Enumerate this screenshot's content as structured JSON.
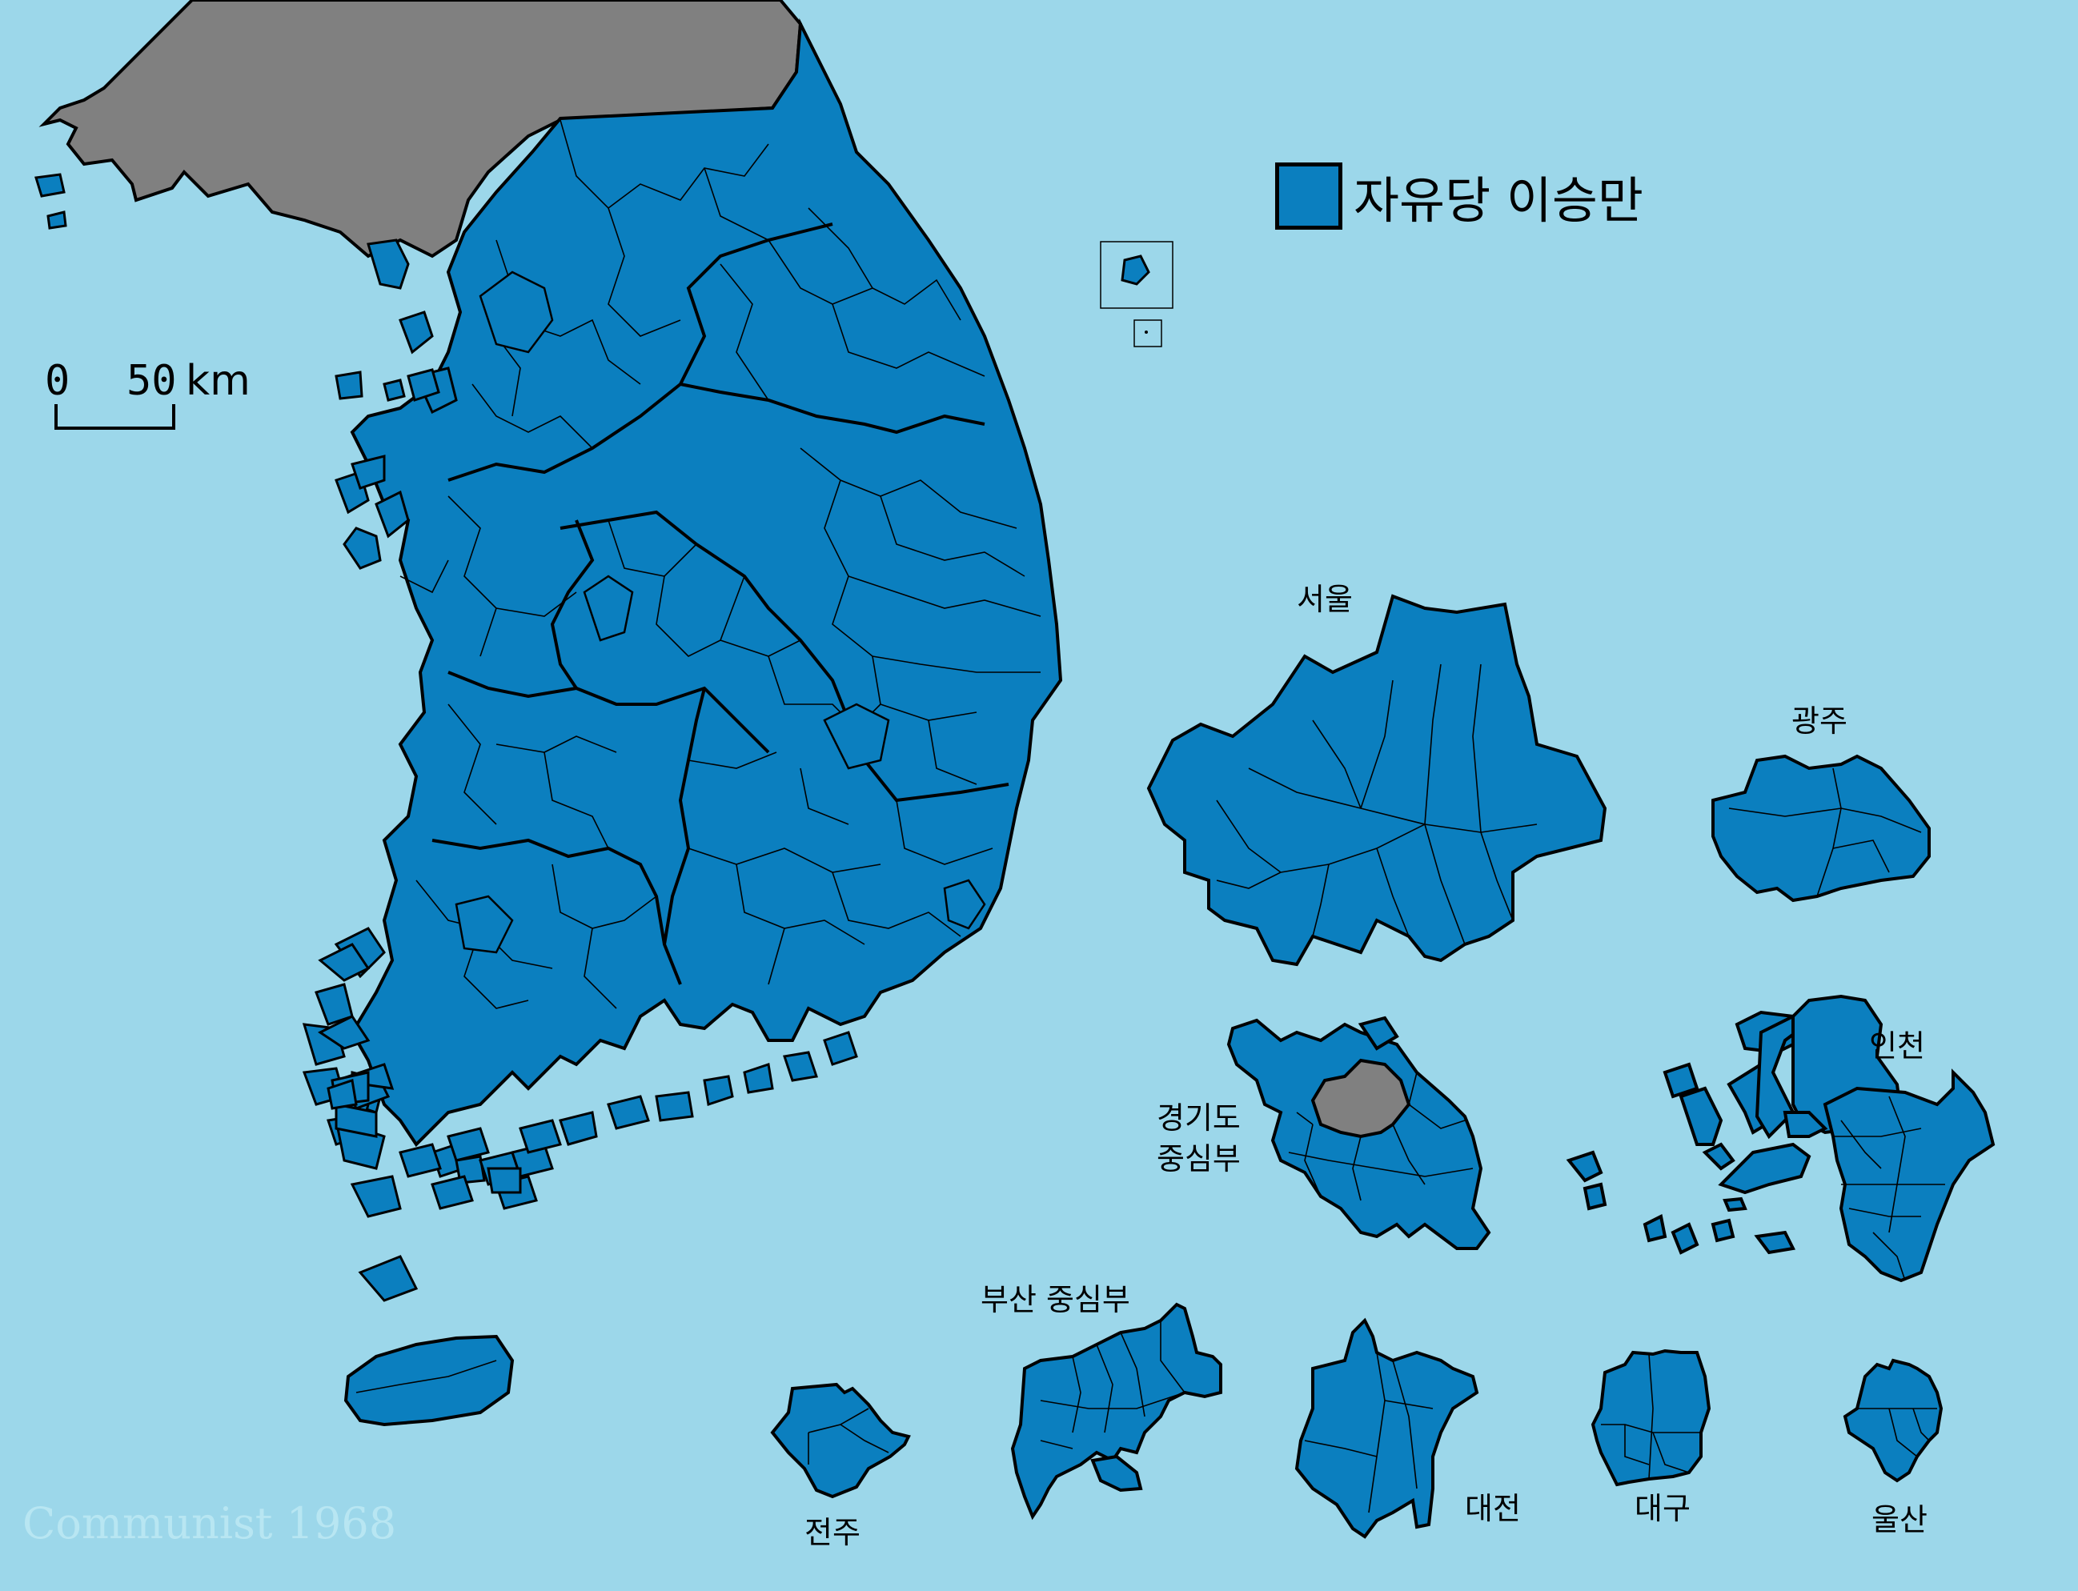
{
  "legend": {
    "label": "자유당 이승만",
    "color": "#0b7fbf"
  },
  "colors": {
    "sea": "#9cd7ea",
    "won": "#0b7fbf",
    "no_data": "#808080",
    "border": "#000000"
  },
  "scale_bar": {
    "zero": "0",
    "fifty": "50",
    "unit": "km"
  },
  "insets": {
    "seoul": "서울",
    "gwangju": "광주",
    "incheon": "인천",
    "gyeonggi_line1": "경기도",
    "gyeonggi_line2": "중심부",
    "busan": "부산 중심부",
    "jeonju": "전주",
    "daejeon": "대전",
    "daegu": "대구",
    "ulsan": "울산"
  },
  "watermark": "Communist 1968"
}
